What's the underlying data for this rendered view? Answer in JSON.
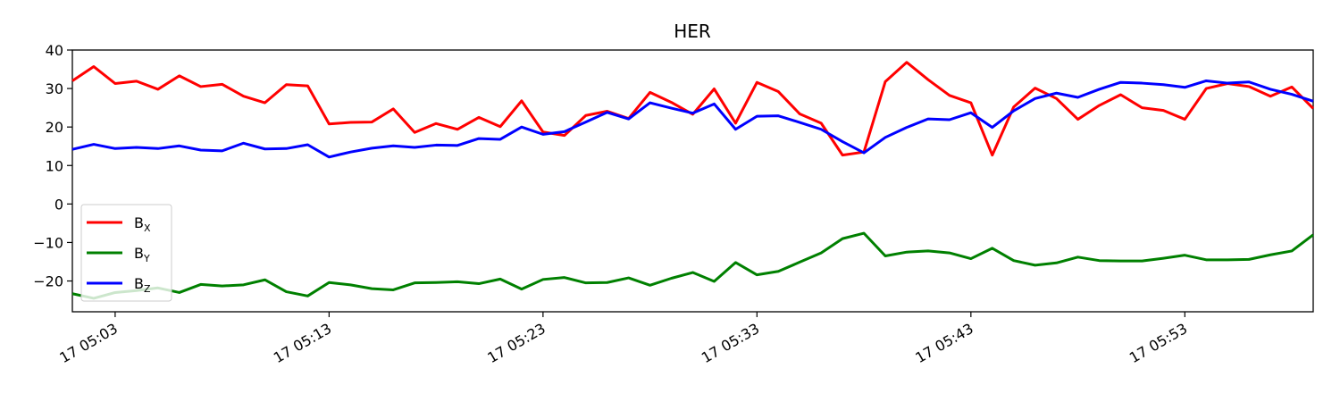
{
  "chart_data": {
    "type": "line",
    "title": "HER",
    "xlabel": "",
    "ylabel": "",
    "xlim": [
      "17 05:01",
      "17 05:59"
    ],
    "ylim": [
      -28,
      40
    ],
    "grid": false,
    "legend_position": "lower-left",
    "x_ticks": [
      "17 05:03",
      "17 05:13",
      "17 05:23",
      "17 05:33",
      "17 05:43",
      "17 05:53"
    ],
    "y_ticks": [
      40,
      30,
      20,
      10,
      0,
      -10,
      -20
    ],
    "x": [
      "17 05:01",
      "17 05:02",
      "17 05:03",
      "17 05:04",
      "17 05:05",
      "17 05:06",
      "17 05:07",
      "17 05:08",
      "17 05:09",
      "17 05:10",
      "17 05:11",
      "17 05:12",
      "17 05:13",
      "17 05:14",
      "17 05:15",
      "17 05:16",
      "17 05:17",
      "17 05:18",
      "17 05:19",
      "17 05:20",
      "17 05:21",
      "17 05:22",
      "17 05:23",
      "17 05:24",
      "17 05:25",
      "17 05:26",
      "17 05:27",
      "17 05:28",
      "17 05:29",
      "17 05:30",
      "17 05:31",
      "17 05:32",
      "17 05:33",
      "17 05:34",
      "17 05:35",
      "17 05:36",
      "17 05:37",
      "17 05:38",
      "17 05:39",
      "17 05:40",
      "17 05:41",
      "17 05:42",
      "17 05:43",
      "17 05:44",
      "17 05:45",
      "17 05:46",
      "17 05:47",
      "17 05:48",
      "17 05:49",
      "17 05:50",
      "17 05:51",
      "17 05:52",
      "17 05:53",
      "17 05:54",
      "17 05:55",
      "17 05:56",
      "17 05:57",
      "17 05:58",
      "17 05:59"
    ],
    "series": [
      {
        "name": "X",
        "color": "#ff0000",
        "values": [
          32.0,
          35.7,
          31.3,
          31.9,
          29.8,
          33.3,
          30.5,
          31.1,
          28.0,
          26.3,
          31.0,
          30.7,
          20.8,
          21.2,
          21.3,
          24.7,
          18.6,
          20.9,
          19.4,
          22.5,
          20.1,
          26.8,
          18.7,
          17.8,
          23.0,
          24.1,
          22.2,
          29.0,
          26.4,
          23.3,
          29.9,
          21.0,
          31.6,
          29.2,
          23.4,
          21.0,
          12.7,
          13.5,
          31.8,
          36.8,
          32.3,
          28.2,
          26.3,
          12.7,
          25.2,
          30.1,
          27.4,
          22.0,
          25.6,
          28.4,
          25.0,
          24.3,
          22.0,
          30.0,
          31.3,
          30.5,
          28.0,
          30.4,
          24.8
        ]
      },
      {
        "name": "Y",
        "color": "#008000",
        "values": [
          -23.3,
          -24.5,
          -23.0,
          -22.5,
          -21.8,
          -23.0,
          -20.9,
          -21.3,
          -21.0,
          -19.7,
          -22.8,
          -23.9,
          -20.4,
          -21.0,
          -22.0,
          -22.3,
          -20.5,
          -20.4,
          -20.2,
          -20.7,
          -19.5,
          -22.1,
          -19.6,
          -19.1,
          -20.5,
          -20.4,
          -19.2,
          -21.1,
          -19.3,
          -17.8,
          -20.1,
          -15.2,
          -18.4,
          -17.5,
          -15.1,
          -12.7,
          -9.0,
          -7.6,
          -13.5,
          -12.5,
          -12.2,
          -12.7,
          -14.2,
          -11.5,
          -14.7,
          -15.9,
          -15.3,
          -13.8,
          -14.7,
          -14.8,
          -14.8,
          -14.1,
          -13.3,
          -14.5,
          -14.5,
          -14.4,
          -13.2,
          -12.2,
          -8.0
        ]
      },
      {
        "name": "Z",
        "color": "#0000ff",
        "values": [
          14.2,
          15.5,
          14.4,
          14.7,
          14.4,
          15.1,
          14.0,
          13.8,
          15.8,
          14.3,
          14.4,
          15.4,
          12.2,
          13.5,
          14.5,
          15.1,
          14.7,
          15.3,
          15.2,
          17.0,
          16.8,
          20.0,
          18.1,
          18.8,
          21.3,
          23.8,
          22.1,
          26.3,
          24.9,
          23.6,
          26.0,
          19.4,
          22.8,
          22.9,
          21.2,
          19.4,
          16.2,
          13.3,
          17.3,
          19.9,
          22.1,
          21.9,
          23.7,
          19.9,
          24.2,
          27.4,
          28.8,
          27.7,
          29.8,
          31.6,
          31.4,
          31.0,
          30.3,
          32.0,
          31.4,
          31.7,
          29.8,
          28.5,
          26.7
        ]
      }
    ]
  }
}
